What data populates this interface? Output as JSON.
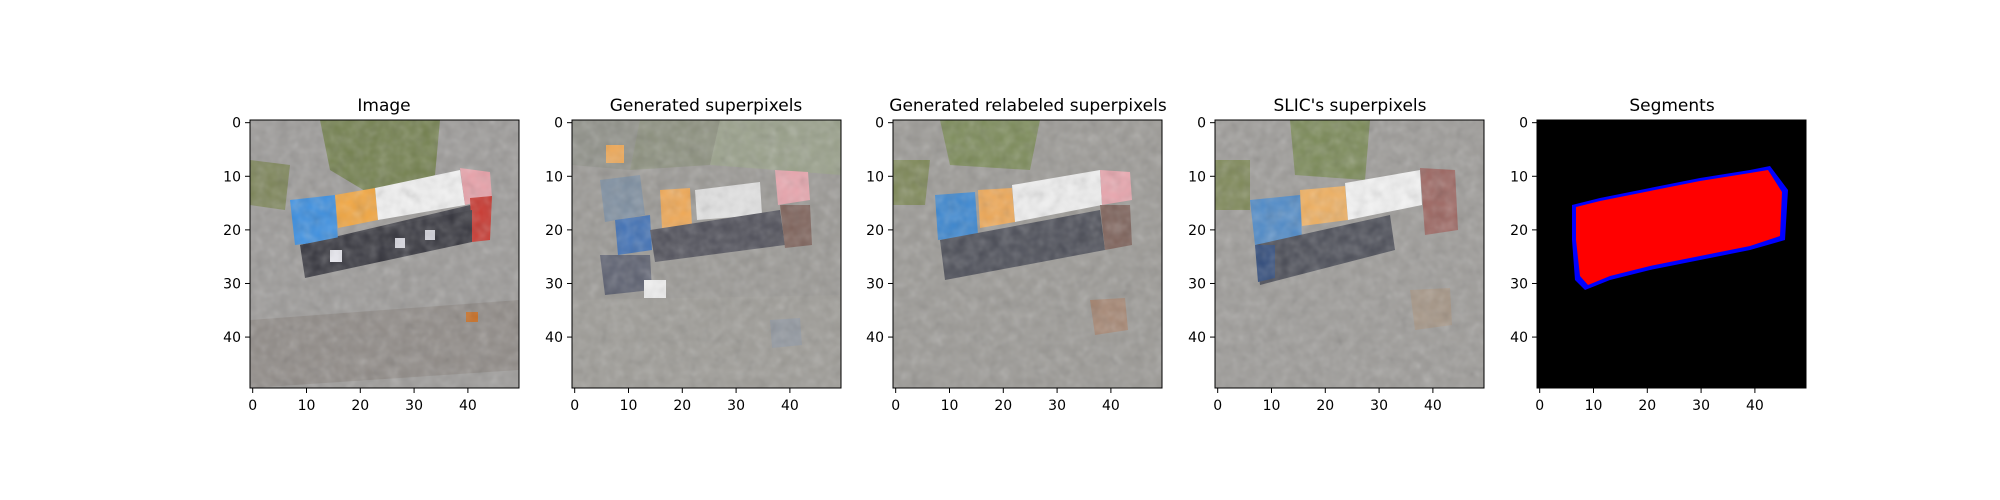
{
  "chart_data": [
    {
      "type": "heatmap",
      "title": "Image",
      "xlim": [
        0,
        49
      ],
      "ylim": [
        49,
        0
      ],
      "xticks": [
        0,
        10,
        20,
        30,
        40
      ],
      "yticks": [
        0,
        10,
        20,
        30,
        40
      ],
      "grid": false,
      "content": "pixelated aerial photo of a bus on a road",
      "colors": {
        "background": "#9c9a98",
        "grass": "#6e7a4a",
        "bus_blue": "#3b8fe0",
        "bus_orange": "#f2a640",
        "bus_white": "#f5f5f5",
        "bus_pink": "#e9a1a8",
        "bus_red": "#c8342c",
        "bus_dark": "#3a3a40"
      }
    },
    {
      "type": "heatmap",
      "title": "Generated superpixels",
      "xlim": [
        0,
        49
      ],
      "ylim": [
        49,
        0
      ],
      "xticks": [
        0,
        10,
        20,
        30,
        40
      ],
      "yticks": [
        0,
        10,
        20,
        30,
        40
      ],
      "grid": false,
      "content": "superpixel segmentation with mean colors"
    },
    {
      "type": "heatmap",
      "title": "Generated relabeled superpixels",
      "xlim": [
        0,
        49
      ],
      "ylim": [
        49,
        0
      ],
      "xticks": [
        0,
        10,
        20,
        30,
        40
      ],
      "yticks": [
        0,
        10,
        20,
        30,
        40
      ],
      "grid": false,
      "content": "relabeled superpixels with mean colors"
    },
    {
      "type": "heatmap",
      "title": "SLIC's superpixels",
      "xlim": [
        0,
        49
      ],
      "ylim": [
        49,
        0
      ],
      "xticks": [
        0,
        10,
        20,
        30,
        40
      ],
      "yticks": [
        0,
        10,
        20,
        30,
        40
      ],
      "grid": false,
      "content": "SLIC superpixels with mean colors"
    },
    {
      "type": "heatmap",
      "title": "Segments",
      "xlim": [
        0,
        49
      ],
      "ylim": [
        49,
        0
      ],
      "xticks": [
        0,
        10,
        20,
        30,
        40
      ],
      "yticks": [
        0,
        10,
        20,
        30,
        40
      ],
      "grid": false,
      "content": "segmentation mask",
      "colors": {
        "background": "#000000",
        "segment": "#ff0000",
        "boundary": "#0000ff"
      }
    }
  ]
}
